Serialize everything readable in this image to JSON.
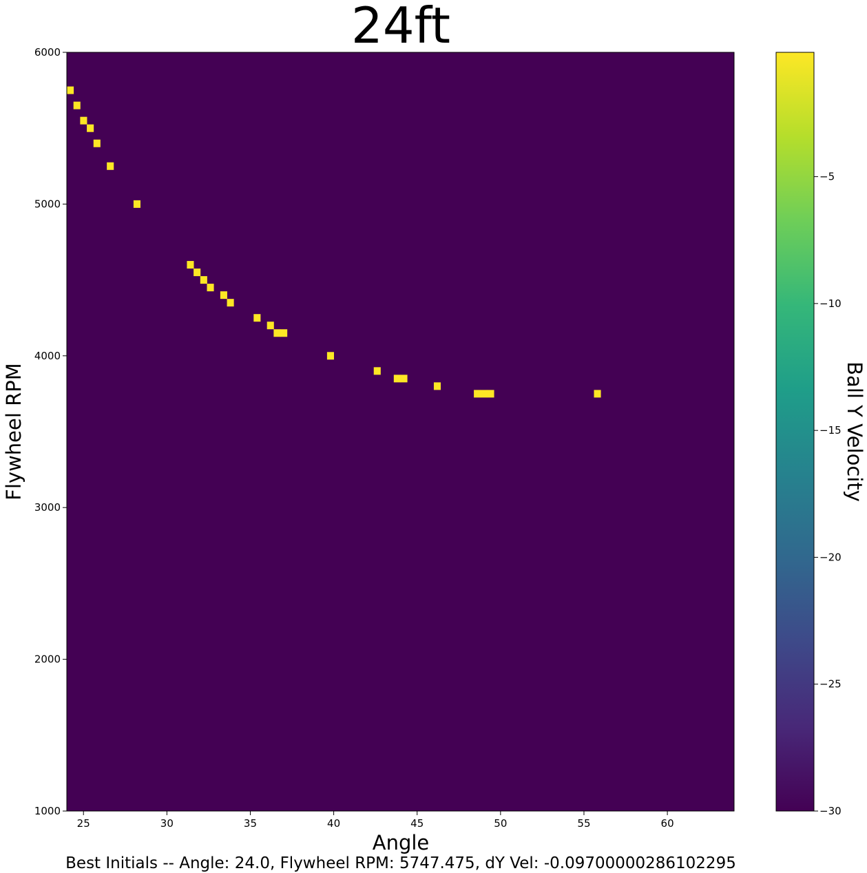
{
  "chart_data": {
    "type": "heatmap",
    "title": "24ft",
    "xlabel": "Angle",
    "ylabel": "Flywheel RPM",
    "xlim": [
      24,
      64
    ],
    "ylim": [
      1000,
      6000
    ],
    "x_ticks": [
      25,
      30,
      35,
      40,
      45,
      50,
      55,
      60
    ],
    "y_ticks": [
      1000,
      2000,
      3000,
      4000,
      5000,
      6000
    ],
    "x_tick_labels": [
      "25",
      "30",
      "35",
      "40",
      "45",
      "50",
      "55",
      "60"
    ],
    "y_tick_labels": [
      "1000",
      "2000",
      "3000",
      "4000",
      "5000",
      "6000"
    ],
    "cell_size": {
      "angle": 0.4,
      "rpm": 50
    },
    "background_value": -30,
    "highlight_value": -0.1,
    "highlight_cells": [
      {
        "angle": 24.0,
        "rpm": 5750
      },
      {
        "angle": 24.4,
        "rpm": 5650
      },
      {
        "angle": 24.8,
        "rpm": 5550
      },
      {
        "angle": 25.2,
        "rpm": 5500
      },
      {
        "angle": 25.6,
        "rpm": 5400
      },
      {
        "angle": 26.4,
        "rpm": 5250
      },
      {
        "angle": 28.0,
        "rpm": 5000
      },
      {
        "angle": 31.2,
        "rpm": 4600
      },
      {
        "angle": 31.6,
        "rpm": 4550
      },
      {
        "angle": 32.0,
        "rpm": 4500
      },
      {
        "angle": 32.4,
        "rpm": 4450
      },
      {
        "angle": 33.2,
        "rpm": 4400
      },
      {
        "angle": 33.6,
        "rpm": 4350
      },
      {
        "angle": 35.2,
        "rpm": 4250
      },
      {
        "angle": 36.0,
        "rpm": 4200
      },
      {
        "angle": 36.4,
        "rpm": 4150
      },
      {
        "angle": 36.8,
        "rpm": 4150
      },
      {
        "angle": 39.6,
        "rpm": 4000
      },
      {
        "angle": 42.4,
        "rpm": 3900
      },
      {
        "angle": 43.6,
        "rpm": 3850
      },
      {
        "angle": 44.0,
        "rpm": 3850
      },
      {
        "angle": 46.0,
        "rpm": 3800
      },
      {
        "angle": 48.4,
        "rpm": 3750
      },
      {
        "angle": 48.8,
        "rpm": 3750
      },
      {
        "angle": 49.2,
        "rpm": 3750
      },
      {
        "angle": 55.6,
        "rpm": 3750
      }
    ],
    "colorbar": {
      "label": "Ball Y Velocity",
      "colormap": "viridis",
      "range": [
        -30,
        -0.1
      ],
      "ticks": [
        -5,
        -10,
        -15,
        -20,
        -25,
        -30
      ],
      "tick_labels": [
        "−5",
        "−10",
        "−15",
        "−20",
        "−25",
        "−30"
      ],
      "colors": [
        "#440154",
        "#482878",
        "#3e4989",
        "#31688e",
        "#26828e",
        "#1f9e89",
        "#35b779",
        "#6ece58",
        "#b5de2b",
        "#fde725"
      ]
    },
    "background_color": "#440154",
    "highlight_color": "#fde725",
    "grid": false
  },
  "caption": "Best Initials -- Angle: 24.0, Flywheel RPM: 5747.475, dY Vel: -0.09700000286102295"
}
